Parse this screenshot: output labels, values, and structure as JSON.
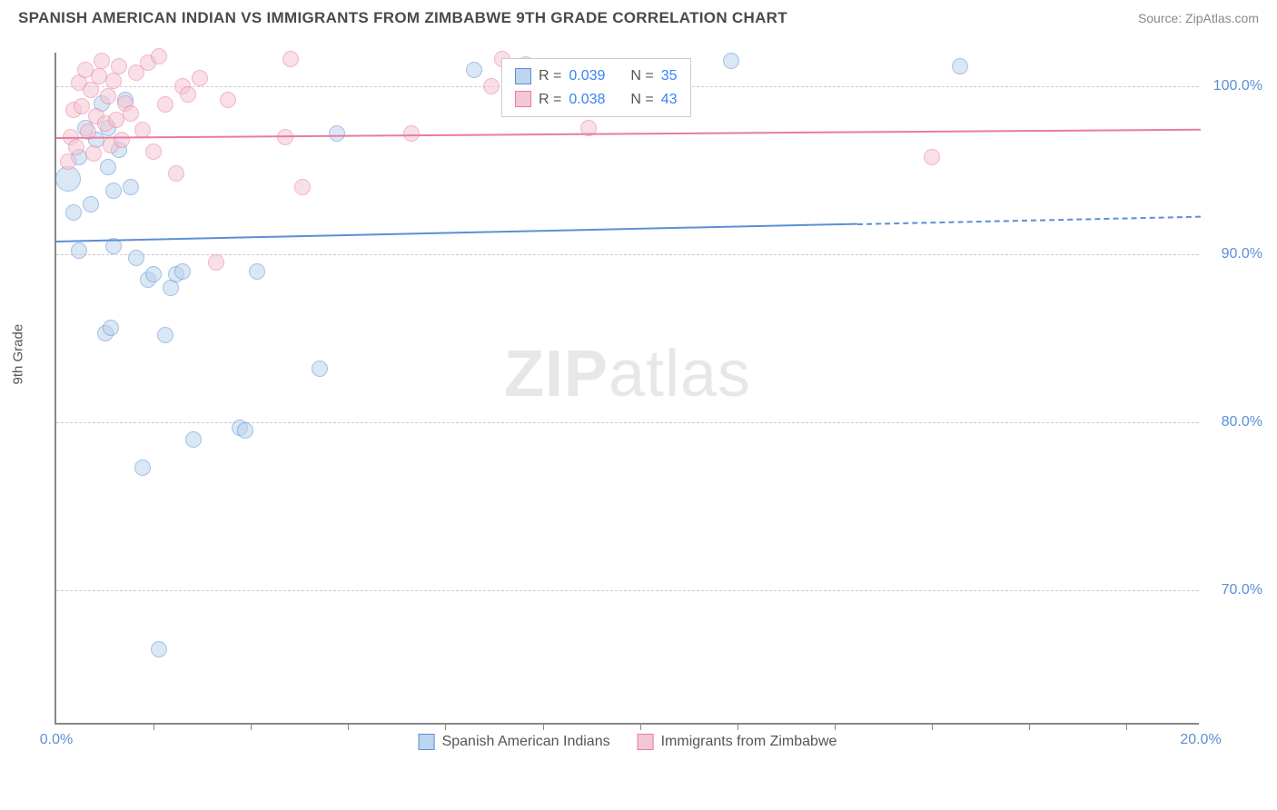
{
  "header": {
    "title": "SPANISH AMERICAN INDIAN VS IMMIGRANTS FROM ZIMBABWE 9TH GRADE CORRELATION CHART",
    "source": "Source: ZipAtlas.com"
  },
  "chart": {
    "type": "scatter",
    "y_axis_label": "9th Grade",
    "watermark": "ZIPatlas",
    "background_color": "#ffffff",
    "grid_color": "#cccccc",
    "axis_color": "#888888",
    "label_color": "#5b8fd6",
    "title_fontsize": 17,
    "label_fontsize": 16,
    "xlim": [
      0,
      20
    ],
    "ylim": [
      62,
      102
    ],
    "x_ticks": [
      0,
      20
    ],
    "y_ticks": [
      70,
      80,
      90,
      100
    ],
    "x_tick_labels": [
      "0.0%",
      "20.0%"
    ],
    "y_tick_labels": [
      "70.0%",
      "80.0%",
      "90.0%",
      "100.0%"
    ],
    "x_minor_ticks": [
      1.7,
      3.4,
      5.1,
      6.8,
      8.5,
      10.2,
      11.9,
      13.6,
      15.3,
      17.0,
      18.7
    ],
    "stats_box": {
      "rows": [
        {
          "swatch_fill": "#bcd4ec",
          "swatch_stroke": "#5b8fd6",
          "r_label": "R =",
          "r_value": "0.039",
          "n_label": "N =",
          "n_value": "35"
        },
        {
          "swatch_fill": "#f5c6d3",
          "swatch_stroke": "#e87ba2",
          "r_label": "R =",
          "r_value": "0.038",
          "n_label": "N =",
          "n_value": "43"
        }
      ],
      "r_value_color": "#3b82f6",
      "n_value_color": "#3b82f6",
      "text_color": "#555555"
    },
    "bottom_legend": [
      {
        "swatch_fill": "#bcd4ec",
        "swatch_stroke": "#5b8fd6",
        "label": "Spanish American Indians"
      },
      {
        "swatch_fill": "#f5c6d3",
        "swatch_stroke": "#e87ba2",
        "label": "Immigrants from Zimbabwe"
      }
    ],
    "series": [
      {
        "name": "Spanish American Indians",
        "marker_fill": "#bcd4ec",
        "marker_stroke": "#5b8fd6",
        "marker_fill_opacity": 0.55,
        "marker_radius": 9,
        "trend": {
          "y_start": 90.8,
          "y_end": 92.3,
          "color": "#5b8fd6",
          "solid_until_x": 14.0
        },
        "points": [
          [
            0.2,
            94.5,
            14
          ],
          [
            0.3,
            92.5,
            9
          ],
          [
            0.4,
            90.2,
            9
          ],
          [
            0.4,
            95.8,
            9
          ],
          [
            0.5,
            97.5,
            9
          ],
          [
            0.6,
            93.0,
            9
          ],
          [
            0.7,
            96.8,
            9
          ],
          [
            0.8,
            99.0,
            9
          ],
          [
            0.9,
            97.5,
            9
          ],
          [
            0.9,
            95.2,
            9
          ],
          [
            1.0,
            90.5,
            9
          ],
          [
            1.0,
            93.8,
            9
          ],
          [
            1.1,
            96.2,
            9
          ],
          [
            1.2,
            99.2,
            9
          ],
          [
            1.3,
            94.0,
            9
          ],
          [
            1.4,
            89.8,
            9
          ],
          [
            1.6,
            88.5,
            9
          ],
          [
            1.7,
            88.8,
            9
          ],
          [
            1.8,
            66.5,
            9
          ],
          [
            1.9,
            85.2,
            9
          ],
          [
            1.5,
            77.3,
            9
          ],
          [
            2.0,
            88.0,
            9
          ],
          [
            2.1,
            88.8,
            9
          ],
          [
            2.2,
            89.0,
            9
          ],
          [
            2.4,
            79.0,
            9
          ],
          [
            0.85,
            85.3,
            9
          ],
          [
            0.95,
            85.6,
            9
          ],
          [
            3.2,
            79.7,
            9
          ],
          [
            3.3,
            79.5,
            9
          ],
          [
            3.5,
            89.0,
            9
          ],
          [
            4.6,
            83.2,
            9
          ],
          [
            4.9,
            97.2,
            9
          ],
          [
            7.3,
            101.0,
            9
          ],
          [
            11.8,
            101.5,
            9
          ],
          [
            15.8,
            101.2,
            9
          ]
        ]
      },
      {
        "name": "Immigrants from Zimbabwe",
        "marker_fill": "#f5c6d3",
        "marker_stroke": "#e87ba2",
        "marker_fill_opacity": 0.55,
        "marker_radius": 9,
        "trend": {
          "y_start": 97.0,
          "y_end": 97.5,
          "color": "#e87ba2",
          "solid_until_x": 20.0
        },
        "points": [
          [
            0.2,
            95.5,
            9
          ],
          [
            0.25,
            97.0,
            9
          ],
          [
            0.3,
            98.6,
            9
          ],
          [
            0.35,
            96.4,
            9
          ],
          [
            0.4,
            100.2,
            9
          ],
          [
            0.45,
            98.8,
            9
          ],
          [
            0.5,
            101.0,
            9
          ],
          [
            0.55,
            97.3,
            9
          ],
          [
            0.6,
            99.8,
            9
          ],
          [
            0.65,
            96.0,
            9
          ],
          [
            0.7,
            98.2,
            9
          ],
          [
            0.75,
            100.6,
            9
          ],
          [
            0.8,
            101.5,
            9
          ],
          [
            0.85,
            97.8,
            9
          ],
          [
            0.9,
            99.4,
            9
          ],
          [
            0.95,
            96.5,
            9
          ],
          [
            1.0,
            100.3,
            9
          ],
          [
            1.05,
            98.0,
            9
          ],
          [
            1.1,
            101.2,
            9
          ],
          [
            1.15,
            96.8,
            9
          ],
          [
            1.2,
            99.0,
            9
          ],
          [
            1.3,
            98.4,
            9
          ],
          [
            1.4,
            100.8,
            9
          ],
          [
            1.5,
            97.4,
            9
          ],
          [
            1.6,
            101.4,
            9
          ],
          [
            1.7,
            96.1,
            9
          ],
          [
            1.9,
            98.9,
            9
          ],
          [
            2.1,
            94.8,
            9
          ],
          [
            2.2,
            100.0,
            9
          ],
          [
            2.3,
            99.5,
            9
          ],
          [
            1.8,
            101.8,
            9
          ],
          [
            2.5,
            100.5,
            9
          ],
          [
            2.8,
            89.5,
            9
          ],
          [
            3.0,
            99.2,
            9
          ],
          [
            4.0,
            97.0,
            9
          ],
          [
            4.1,
            101.6,
            9
          ],
          [
            4.3,
            94.0,
            9
          ],
          [
            6.2,
            97.2,
            9
          ],
          [
            7.6,
            100.0,
            9
          ],
          [
            7.8,
            101.6,
            9
          ],
          [
            8.2,
            101.3,
            9
          ],
          [
            9.3,
            97.5,
            9
          ],
          [
            15.3,
            95.8,
            9
          ]
        ]
      }
    ]
  }
}
